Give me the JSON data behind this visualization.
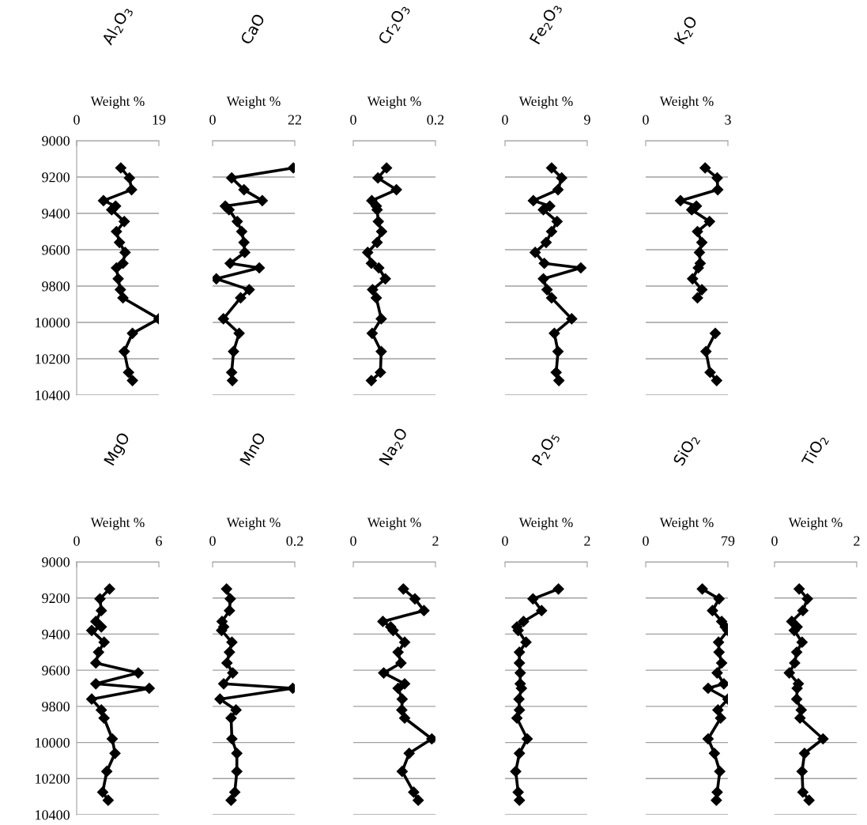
{
  "chart_data": [
    {
      "type": "line",
      "title": "Al$_{2}$O$_{3}$",
      "xlabel": "Weight %",
      "xlim": [
        0,
        19
      ],
      "xticks": [
        0,
        19
      ],
      "ylim": [
        10400,
        9000
      ],
      "yticks": [
        9000,
        9200,
        9400,
        9600,
        9800,
        10000,
        10200,
        10400
      ],
      "grid": "y",
      "marker": "diamond",
      "line_style": "solid",
      "series": [
        {
          "color": "#000000",
          "x": [
            10.2,
            12.2,
            12.7,
            6.2,
            9.0,
            8.1,
            11.0,
            9.2,
            9.9,
            11.2,
            10.7,
            9.2,
            9.6,
            10.1,
            10.7,
            19,
            12.9,
            11.0,
            12.0,
            12.9
          ],
          "values": [
            9150,
            9205,
            9270,
            9330,
            9360,
            9380,
            9445,
            9500,
            9560,
            9615,
            9675,
            9700,
            9760,
            9820,
            9865,
            9980,
            10060,
            10160,
            10275,
            10320
          ]
        }
      ]
    },
    {
      "type": "line",
      "title": "CaO",
      "xlabel": "Weight %",
      "xlim": [
        0,
        22
      ],
      "xticks": [
        0,
        22
      ],
      "ylim": [
        10400,
        9000
      ],
      "yticks": [
        9000,
        9200,
        9400,
        9600,
        9800,
        10000,
        10200,
        10400
      ],
      "grid": "y",
      "marker": "diamond",
      "line_style": "solid",
      "tick_labels": "x",
      "series": [
        {
          "color": "#000000",
          "x": [
            21.6,
            5.1,
            8.4,
            13.3,
            3.4,
            4.4,
            6.6,
            7.8,
            8.4,
            8.6,
            4.7,
            12.5,
            1.0,
            9.8,
            7.5,
            2.9,
            7.1,
            5.6,
            5.1,
            5.3
          ],
          "values": [
            9150,
            9205,
            9270,
            9330,
            9360,
            9380,
            9445,
            9500,
            9560,
            9615,
            9675,
            9700,
            9760,
            9820,
            9865,
            9980,
            10060,
            10160,
            10275,
            10320
          ]
        }
      ]
    },
    {
      "type": "line",
      "title": "Cr$_{2}$O$_{3}$",
      "xlabel": "Weight %",
      "xlim": [
        0,
        0.2
      ],
      "xticks": [
        0,
        0.2
      ],
      "ylim": [
        10400,
        9000
      ],
      "yticks": [
        9000,
        9200,
        9400,
        9600,
        9800,
        10000,
        10200,
        10400
      ],
      "grid": "y",
      "marker": "diamond",
      "line_style": "solid",
      "tick_labels": "x",
      "series": [
        {
          "color": "#000000",
          "x": [
            0.081,
            0.06,
            0.105,
            0.045,
            0.056,
            0.058,
            0.061,
            0.069,
            0.058,
            0.035,
            0.044,
            0.062,
            0.078,
            0.047,
            0.056,
            0.068,
            0.046,
            0.068,
            0.066,
            0.044
          ],
          "values": [
            9150,
            9205,
            9270,
            9330,
            9360,
            9380,
            9445,
            9500,
            9560,
            9615,
            9675,
            9700,
            9760,
            9820,
            9865,
            9980,
            10060,
            10160,
            10275,
            10320
          ]
        }
      ]
    },
    {
      "type": "line",
      "title": "Fe$_{2}$O$_{3}$",
      "xlabel": "Weight %",
      "xlim": [
        0,
        9
      ],
      "xticks": [
        0,
        9
      ],
      "ylim": [
        10400,
        9000
      ],
      "yticks": [
        9000,
        9200,
        9400,
        9600,
        9800,
        10000,
        10200,
        10400
      ],
      "grid": "y",
      "marker": "diamond",
      "line_style": "solid",
      "tick_labels": "x",
      "series": [
        {
          "color": "#000000",
          "x": [
            5.1,
            6.2,
            5.8,
            3.1,
            4.9,
            4.2,
            5.7,
            5.1,
            4.5,
            3.3,
            4.3,
            8.3,
            4.2,
            4.6,
            5.1,
            7.3,
            5.4,
            5.8,
            5.6,
            5.9
          ],
          "values": [
            9150,
            9205,
            9270,
            9330,
            9360,
            9380,
            9445,
            9500,
            9560,
            9615,
            9675,
            9700,
            9760,
            9820,
            9865,
            9980,
            10060,
            10160,
            10275,
            10320
          ]
        }
      ]
    },
    {
      "type": "line",
      "title": "K$_{2}$O",
      "xlabel": "Weight %",
      "xlim": [
        0,
        3
      ],
      "xticks": [
        0,
        3
      ],
      "ylim": [
        10400,
        9000
      ],
      "yticks": [
        9000,
        9200,
        9400,
        9600,
        9800,
        10000,
        10200,
        10400
      ],
      "grid": "y",
      "marker": "diamond",
      "line_style": "solid",
      "tick_labels": "x",
      "series": [
        {
          "color": "#000000",
          "x": [
            2.17,
            2.61,
            2.63,
            1.27,
            1.85,
            1.68,
            2.33,
            1.89,
            2.05,
            1.96,
            1.99,
            1.92,
            1.71,
            2.05,
            1.89,
            null,
            2.54,
            2.2,
            2.35,
            2.59
          ],
          "values": [
            9150,
            9205,
            9270,
            9330,
            9360,
            9380,
            9445,
            9500,
            9560,
            9615,
            9675,
            9700,
            9760,
            9820,
            9865,
            null,
            10060,
            10160,
            10275,
            10320
          ]
        }
      ]
    },
    {
      "type": "line",
      "title": "MgO",
      "xlabel": "Weight %",
      "xlim": [
        0,
        6
      ],
      "xticks": [
        0,
        6
      ],
      "ylim": [
        10400,
        9000
      ],
      "yticks": [
        9000,
        9200,
        9400,
        9600,
        9800,
        10000,
        10200,
        10400
      ],
      "grid": "y",
      "marker": "diamond",
      "line_style": "solid",
      "series": [
        {
          "color": "#000000",
          "x": [
            2.4,
            1.7,
            1.8,
            1.4,
            1.8,
            1.1,
            2.0,
            1.6,
            1.4,
            4.5,
            1.4,
            5.3,
            1.1,
            1.8,
            2.0,
            2.6,
            2.8,
            2.2,
            1.9,
            2.3
          ],
          "values": [
            9150,
            9205,
            9270,
            9330,
            9360,
            9380,
            9445,
            9500,
            9560,
            9615,
            9675,
            9700,
            9760,
            9820,
            9865,
            9980,
            10060,
            10160,
            10275,
            10320
          ]
        }
      ]
    },
    {
      "type": "line",
      "title": "MnO",
      "xlabel": "Weight %",
      "xlim": [
        0,
        0.2
      ],
      "xticks": [
        0,
        0.2
      ],
      "ylim": [
        10400,
        9000
      ],
      "yticks": [
        9000,
        9200,
        9400,
        9600,
        9800,
        10000,
        10200,
        10400
      ],
      "grid": "y",
      "marker": "diamond",
      "line_style": "solid",
      "tick_labels": "x",
      "series": [
        {
          "color": "#000000",
          "x": [
            0.034,
            0.043,
            0.041,
            0.023,
            0.027,
            0.022,
            0.047,
            0.041,
            0.035,
            0.049,
            0.027,
            0.195,
            0.018,
            0.057,
            0.045,
            0.047,
            0.059,
            0.059,
            0.054,
            0.045
          ],
          "values": [
            9150,
            9205,
            9270,
            9330,
            9360,
            9380,
            9445,
            9500,
            9560,
            9615,
            9675,
            9700,
            9760,
            9820,
            9865,
            9980,
            10060,
            10160,
            10275,
            10320
          ]
        }
      ]
    },
    {
      "type": "line",
      "title": "Na$_{2}$O",
      "xlabel": "Weight %",
      "xlim": [
        0,
        2
      ],
      "xticks": [
        0,
        2
      ],
      "ylim": [
        10400,
        9000
      ],
      "yticks": [
        9000,
        9200,
        9400,
        9600,
        9800,
        10000,
        10200,
        10400
      ],
      "grid": "y",
      "marker": "diamond",
      "line_style": "solid",
      "tick_labels": "x",
      "series": [
        {
          "color": "#000000",
          "x": [
            1.22,
            1.5,
            1.72,
            0.72,
            0.91,
            0.97,
            1.25,
            1.09,
            1.16,
            0.74,
            1.25,
            1.09,
            1.19,
            1.18,
            1.25,
            1.91,
            1.36,
            1.19,
            1.47,
            1.58
          ],
          "values": [
            9150,
            9205,
            9270,
            9330,
            9360,
            9380,
            9445,
            9500,
            9560,
            9615,
            9675,
            9700,
            9760,
            9820,
            9865,
            9980,
            10060,
            10160,
            10275,
            10320
          ]
        }
      ]
    },
    {
      "type": "line",
      "title": "P$_{2}$O$_{5}$",
      "xlabel": "Weight %",
      "xlim": [
        0,
        2
      ],
      "xticks": [
        0,
        2
      ],
      "ylim": [
        10400,
        9000
      ],
      "yticks": [
        9000,
        9200,
        9400,
        9600,
        9800,
        10000,
        10200,
        10400
      ],
      "grid": "y",
      "marker": "diamond",
      "line_style": "solid",
      "tick_labels": "x",
      "series": [
        {
          "color": "#000000",
          "x": [
            1.3,
            0.68,
            0.89,
            0.45,
            0.29,
            0.32,
            0.51,
            0.35,
            0.35,
            0.37,
            0.37,
            0.4,
            0.34,
            0.35,
            0.29,
            0.54,
            0.35,
            0.26,
            0.32,
            0.35
          ],
          "values": [
            9150,
            9205,
            9270,
            9330,
            9360,
            9380,
            9445,
            9500,
            9560,
            9615,
            9675,
            9700,
            9760,
            9820,
            9865,
            9980,
            10060,
            10160,
            10275,
            10320
          ]
        }
      ]
    },
    {
      "type": "line",
      "title": "SiO$_{2}$",
      "xlabel": "Weight %",
      "xlim": [
        0,
        79
      ],
      "xticks": [
        0,
        79
      ],
      "ylim": [
        10400,
        9000
      ],
      "yticks": [
        9000,
        9200,
        9400,
        9600,
        9800,
        10000,
        10200,
        10400
      ],
      "grid": "y",
      "marker": "diamond",
      "line_style": "solid",
      "tick_labels": "x",
      "series": [
        {
          "color": "#000000",
          "x": [
            54.4,
            70.5,
            64.2,
            73,
            76.4,
            79,
            70,
            70.5,
            73,
            68.7,
            75.1,
            60,
            79,
            69.4,
            72,
            60,
            66,
            71.2,
            68.7,
            67.9
          ],
          "values": [
            9150,
            9205,
            9270,
            9330,
            9360,
            9380,
            9445,
            9500,
            9560,
            9615,
            9675,
            9700,
            9760,
            9820,
            9865,
            9980,
            10060,
            10160,
            10275,
            10320
          ]
        }
      ]
    },
    {
      "type": "line",
      "title": "TiO$_{2}$",
      "xlabel": "Weight %",
      "xlim": [
        0,
        2
      ],
      "xticks": [
        0,
        2
      ],
      "ylim": [
        10400,
        9000
      ],
      "yticks": [
        9000,
        9200,
        9400,
        9600,
        9800,
        10000,
        10200,
        10400
      ],
      "grid": "y",
      "marker": "diamond",
      "line_style": "solid",
      "tick_labels": "x",
      "series": [
        {
          "color": "#000000",
          "x": [
            0.6,
            0.8,
            0.69,
            0.42,
            0.55,
            0.48,
            0.67,
            0.54,
            0.49,
            0.36,
            0.58,
            0.55,
            0.54,
            0.65,
            0.62,
            1.18,
            0.73,
            0.67,
            0.69,
            0.84
          ],
          "values": [
            9150,
            9205,
            9270,
            9330,
            9360,
            9380,
            9445,
            9500,
            9560,
            9615,
            9675,
            9700,
            9760,
            9820,
            9865,
            9980,
            10060,
            10160,
            10275,
            10320
          ]
        }
      ]
    }
  ]
}
